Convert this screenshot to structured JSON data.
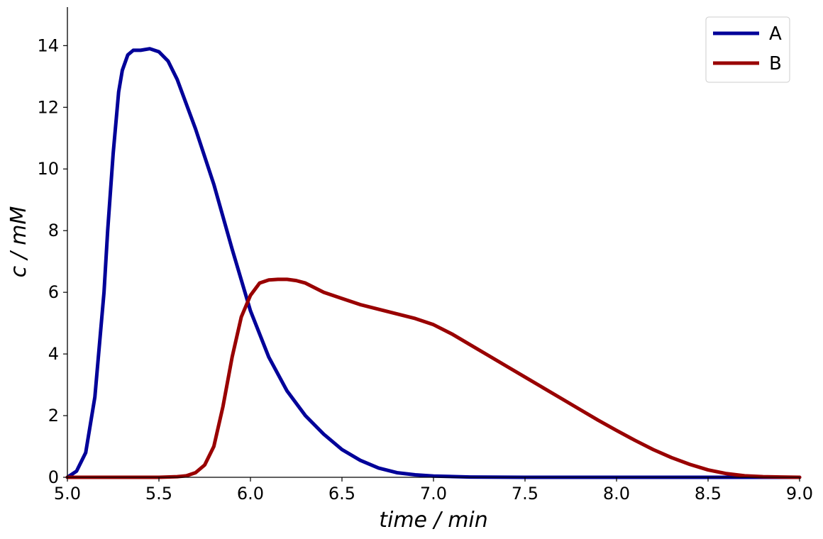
{
  "chart_data": {
    "type": "line",
    "title": "",
    "xlabel": "time / min",
    "ylabel": "c / mM",
    "xlim": [
      5.0,
      9.0
    ],
    "ylim": [
      0,
      15.25
    ],
    "xticks": [
      "5.0",
      "5.5",
      "6.0",
      "6.5",
      "7.0",
      "7.5",
      "8.0",
      "8.5",
      "9.0"
    ],
    "yticks": [
      "0",
      "2",
      "4",
      "6",
      "8",
      "10",
      "12",
      "14"
    ],
    "grid": false,
    "legend_position": "top-right",
    "series": [
      {
        "name": "A",
        "color": "#000099",
        "x": [
          5.0,
          5.05,
          5.1,
          5.15,
          5.2,
          5.22,
          5.25,
          5.28,
          5.3,
          5.33,
          5.36,
          5.4,
          5.45,
          5.5,
          5.55,
          5.6,
          5.7,
          5.8,
          5.9,
          6.0,
          6.1,
          6.2,
          6.3,
          6.4,
          6.5,
          6.6,
          6.7,
          6.8,
          6.9,
          7.0,
          7.2,
          7.5,
          8.0,
          8.5,
          9.0
        ],
        "y": [
          0.0,
          0.2,
          0.8,
          2.6,
          6.0,
          8.0,
          10.5,
          12.5,
          13.2,
          13.7,
          13.85,
          13.85,
          13.9,
          13.8,
          13.5,
          12.9,
          11.3,
          9.5,
          7.4,
          5.4,
          3.9,
          2.8,
          2.0,
          1.4,
          0.9,
          0.55,
          0.3,
          0.15,
          0.08,
          0.04,
          0.01,
          0.0,
          0.0,
          0.0,
          0.0
        ]
      },
      {
        "name": "B",
        "color": "#990000",
        "x": [
          5.0,
          5.5,
          5.6,
          5.65,
          5.7,
          5.75,
          5.8,
          5.85,
          5.9,
          5.95,
          6.0,
          6.05,
          6.1,
          6.15,
          6.2,
          6.25,
          6.3,
          6.4,
          6.5,
          6.6,
          6.7,
          6.8,
          6.9,
          7.0,
          7.1,
          7.2,
          7.3,
          7.4,
          7.5,
          7.6,
          7.7,
          7.8,
          7.9,
          8.0,
          8.1,
          8.2,
          8.3,
          8.4,
          8.5,
          8.6,
          8.7,
          8.8,
          8.9,
          9.0
        ],
        "y": [
          0.0,
          0.0,
          0.02,
          0.05,
          0.15,
          0.4,
          1.0,
          2.3,
          3.9,
          5.2,
          5.9,
          6.3,
          6.4,
          6.42,
          6.42,
          6.38,
          6.3,
          6.0,
          5.8,
          5.6,
          5.45,
          5.3,
          5.15,
          4.95,
          4.65,
          4.3,
          3.95,
          3.6,
          3.25,
          2.9,
          2.55,
          2.2,
          1.85,
          1.52,
          1.2,
          0.9,
          0.64,
          0.42,
          0.24,
          0.12,
          0.05,
          0.02,
          0.01,
          0.0
        ]
      }
    ]
  }
}
